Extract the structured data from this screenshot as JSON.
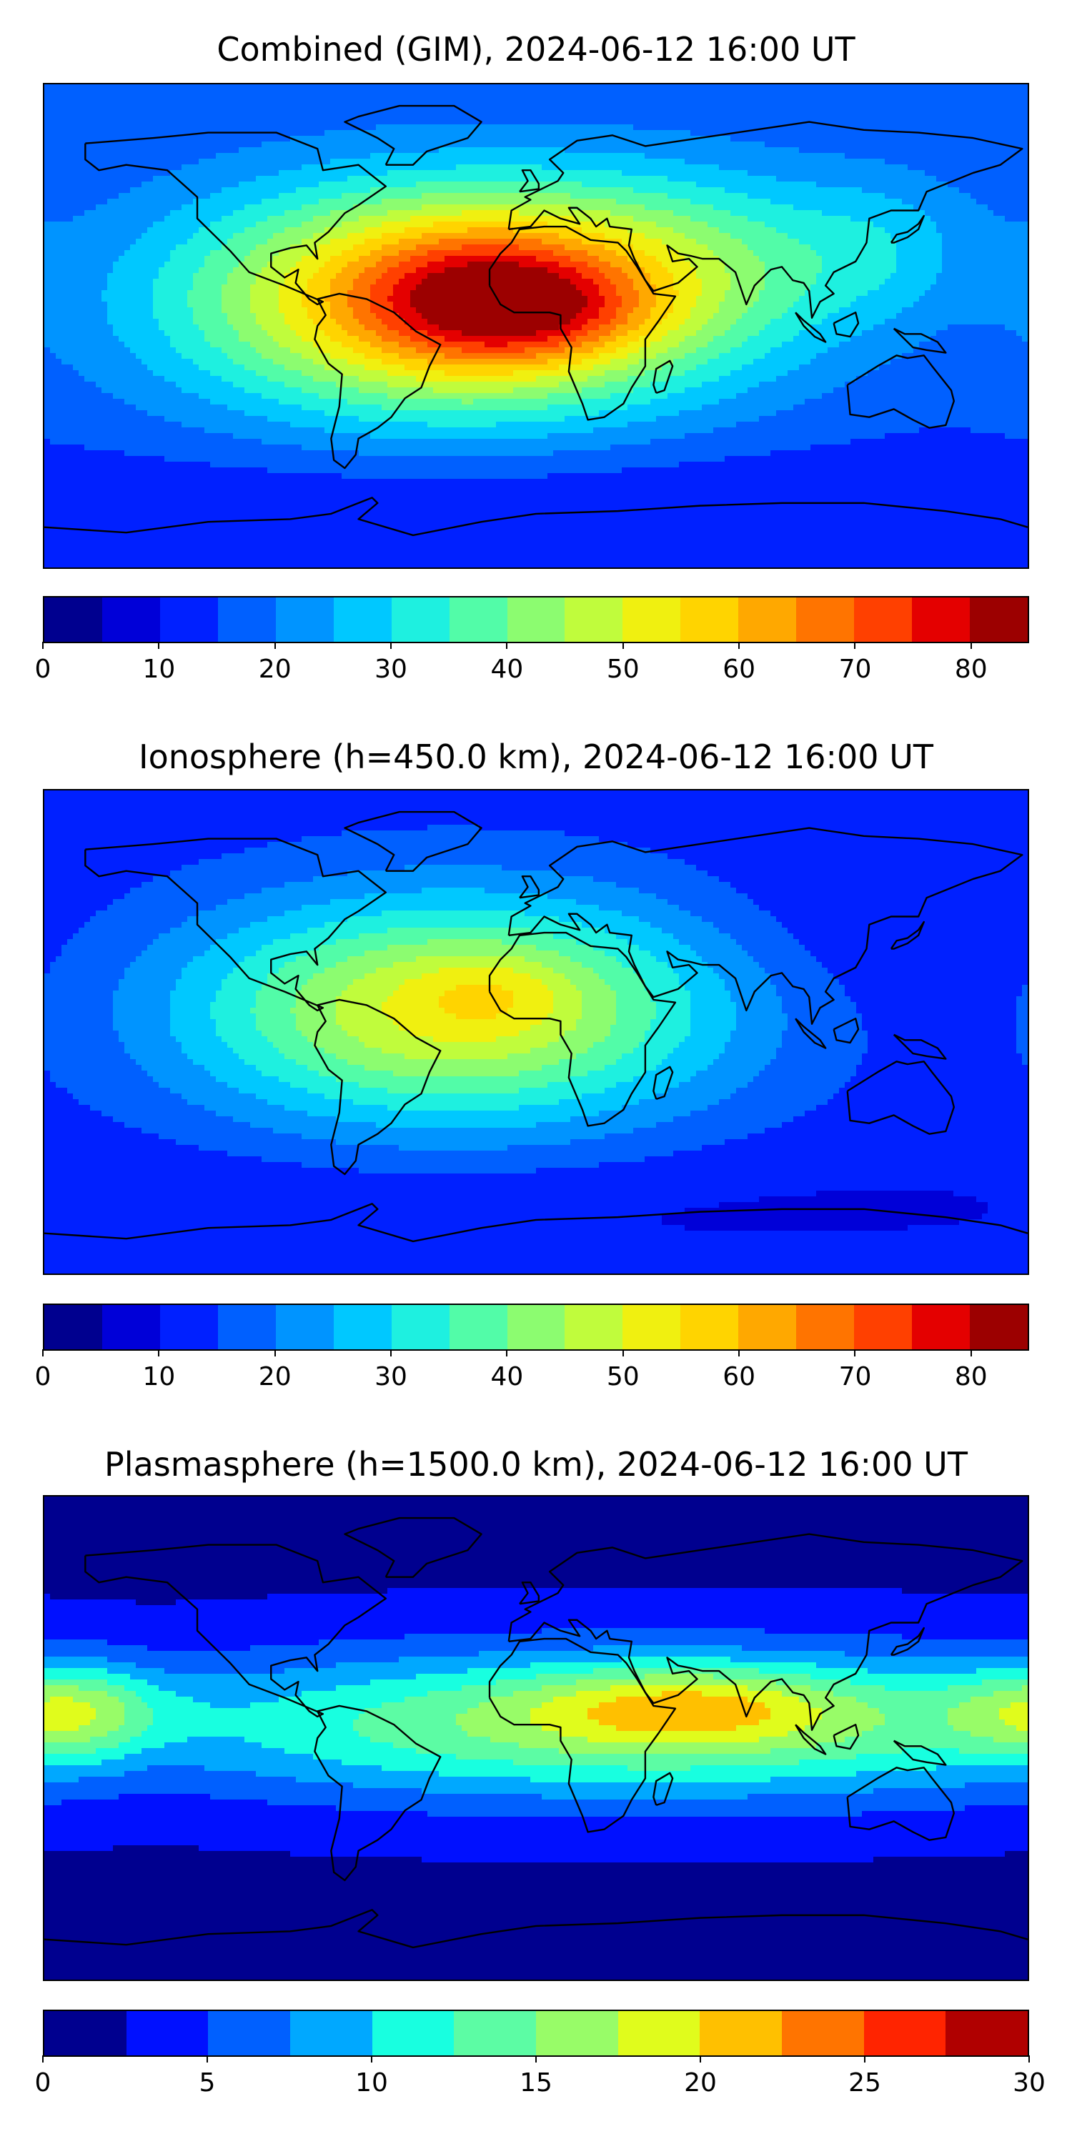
{
  "chart_data": [
    {
      "type": "heatmap",
      "title": "Combined (GIM), 2024-06-12 16:00 UT",
      "colorbar": {
        "levels": [
          0,
          5,
          10,
          15,
          20,
          25,
          30,
          35,
          40,
          45,
          50,
          55,
          60,
          65,
          70,
          75,
          80,
          85
        ],
        "ticks": [
          0,
          10,
          20,
          30,
          40,
          50,
          60,
          70,
          80
        ],
        "colors": [
          "#00008f",
          "#0000d8",
          "#0020ff",
          "#0060ff",
          "#0094ff",
          "#00c8ff",
          "#1ef0e0",
          "#52fca8",
          "#8cfc70",
          "#c0fc3c",
          "#f0f010",
          "#ffd400",
          "#ffa800",
          "#ff7400",
          "#ff4000",
          "#e40000",
          "#9c0000"
        ]
      },
      "field": {
        "background": 15,
        "blobs": [
          {
            "lat": 10,
            "lon": -30,
            "value": 52,
            "sx": 70,
            "sy": 30
          },
          {
            "lat": 10,
            "lon": -20,
            "value": 18,
            "sx": 30,
            "sy": 18
          },
          {
            "lat": 5,
            "lon": 10,
            "value": 10,
            "sx": 25,
            "sy": 12
          },
          {
            "lat": 25,
            "lon": 60,
            "value": 12,
            "sx": 50,
            "sy": 25
          },
          {
            "lat": 30,
            "lon": 130,
            "value": 8,
            "sx": 25,
            "sy": 20
          },
          {
            "lat": -65,
            "lon": 0,
            "value": -5,
            "sx": 200,
            "sy": 15
          }
        ]
      }
    },
    {
      "type": "heatmap",
      "title": "Ionosphere  (h=450.0 km), 2024-06-12 16:00 UT",
      "colorbar": {
        "levels": [
          0,
          5,
          10,
          15,
          20,
          25,
          30,
          35,
          40,
          45,
          50,
          55,
          60,
          65,
          70,
          75,
          80,
          85
        ],
        "ticks": [
          0,
          10,
          20,
          30,
          40,
          50,
          60,
          70,
          80
        ],
        "colors": [
          "#00008f",
          "#0000d8",
          "#0020ff",
          "#0060ff",
          "#0094ff",
          "#00c8ff",
          "#1ef0e0",
          "#52fca8",
          "#8cfc70",
          "#c0fc3c",
          "#f0f010",
          "#ffd400",
          "#ffa800",
          "#ff7400",
          "#ff4000",
          "#e40000",
          "#9c0000"
        ]
      },
      "field": {
        "background": 12,
        "blobs": [
          {
            "lat": 8,
            "lon": -30,
            "value": 40,
            "sx": 70,
            "sy": 30
          },
          {
            "lat": 15,
            "lon": -15,
            "value": 6,
            "sx": 20,
            "sy": 10
          },
          {
            "lat": 40,
            "lon": 120,
            "value": -3,
            "sx": 40,
            "sy": 25
          },
          {
            "lat": -65,
            "lon": 0,
            "value": -3,
            "sx": 200,
            "sy": 15
          }
        ]
      }
    },
    {
      "type": "heatmap",
      "title": "Plasmasphere (h=1500.0 km), 2024-06-12 16:00 UT",
      "colorbar": {
        "levels": [
          0,
          2.5,
          5,
          7.5,
          10,
          12.5,
          15,
          17.5,
          20,
          22.5,
          25,
          27.5,
          30
        ],
        "ticks": [
          0,
          5,
          10,
          15,
          20,
          25,
          30
        ],
        "colors": [
          "#00008f",
          "#0010ff",
          "#0060ff",
          "#00a8ff",
          "#18ffe0",
          "#5cfca4",
          "#98fc68",
          "#e0fc1c",
          "#ffc000",
          "#ff7400",
          "#ff2400",
          "#b00000"
        ]
      },
      "field": {
        "background": 2,
        "blobs": [
          {
            "lat": 5,
            "lon": 40,
            "value": 14,
            "sx": 140,
            "sy": 20
          },
          {
            "lat": 12,
            "lon": 55,
            "value": 7,
            "sx": 40,
            "sy": 10
          },
          {
            "lat": 10,
            "lon": -170,
            "value": 9,
            "sx": 25,
            "sy": 12
          }
        ]
      }
    }
  ]
}
